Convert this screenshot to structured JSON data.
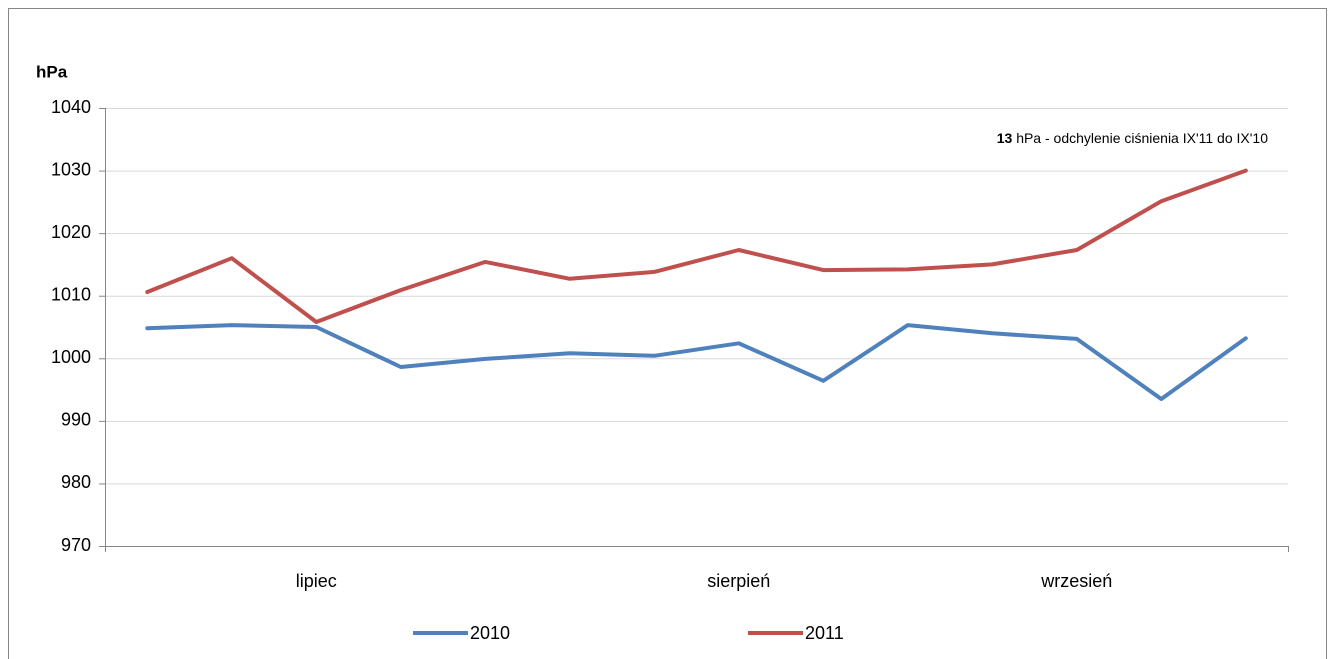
{
  "chart_data": {
    "type": "line",
    "y_label": "hPa",
    "annotation": {
      "bold": "13",
      "text": "hPa - odchylenie ciśnienia IX'11 do IX'10"
    },
    "categories": [
      null,
      null,
      "lipiec",
      null,
      null,
      null,
      null,
      "sierpień",
      null,
      null,
      null,
      "wrzesień",
      null,
      null
    ],
    "series": [
      {
        "name": "2010",
        "color": "#4f81bd",
        "values": [
          1004.8,
          1005.3,
          1005.0,
          998.6,
          999.9,
          1000.8,
          1000.4,
          1002.4,
          996.4,
          1005.3,
          1004.0,
          1003.1,
          993.5,
          1003.2
        ]
      },
      {
        "name": "2011",
        "color": "#c0504d",
        "values": [
          1010.6,
          1016.0,
          1005.8,
          1010.9,
          1015.4,
          1012.7,
          1013.8,
          1017.3,
          1014.1,
          1014.2,
          1015.0,
          1017.3,
          1025.1,
          1030.0
        ]
      }
    ],
    "ylim": [
      970,
      1040
    ],
    "yticks": [
      970,
      980,
      990,
      1000,
      1010,
      1020,
      1030,
      1040
    ],
    "grid": true
  }
}
